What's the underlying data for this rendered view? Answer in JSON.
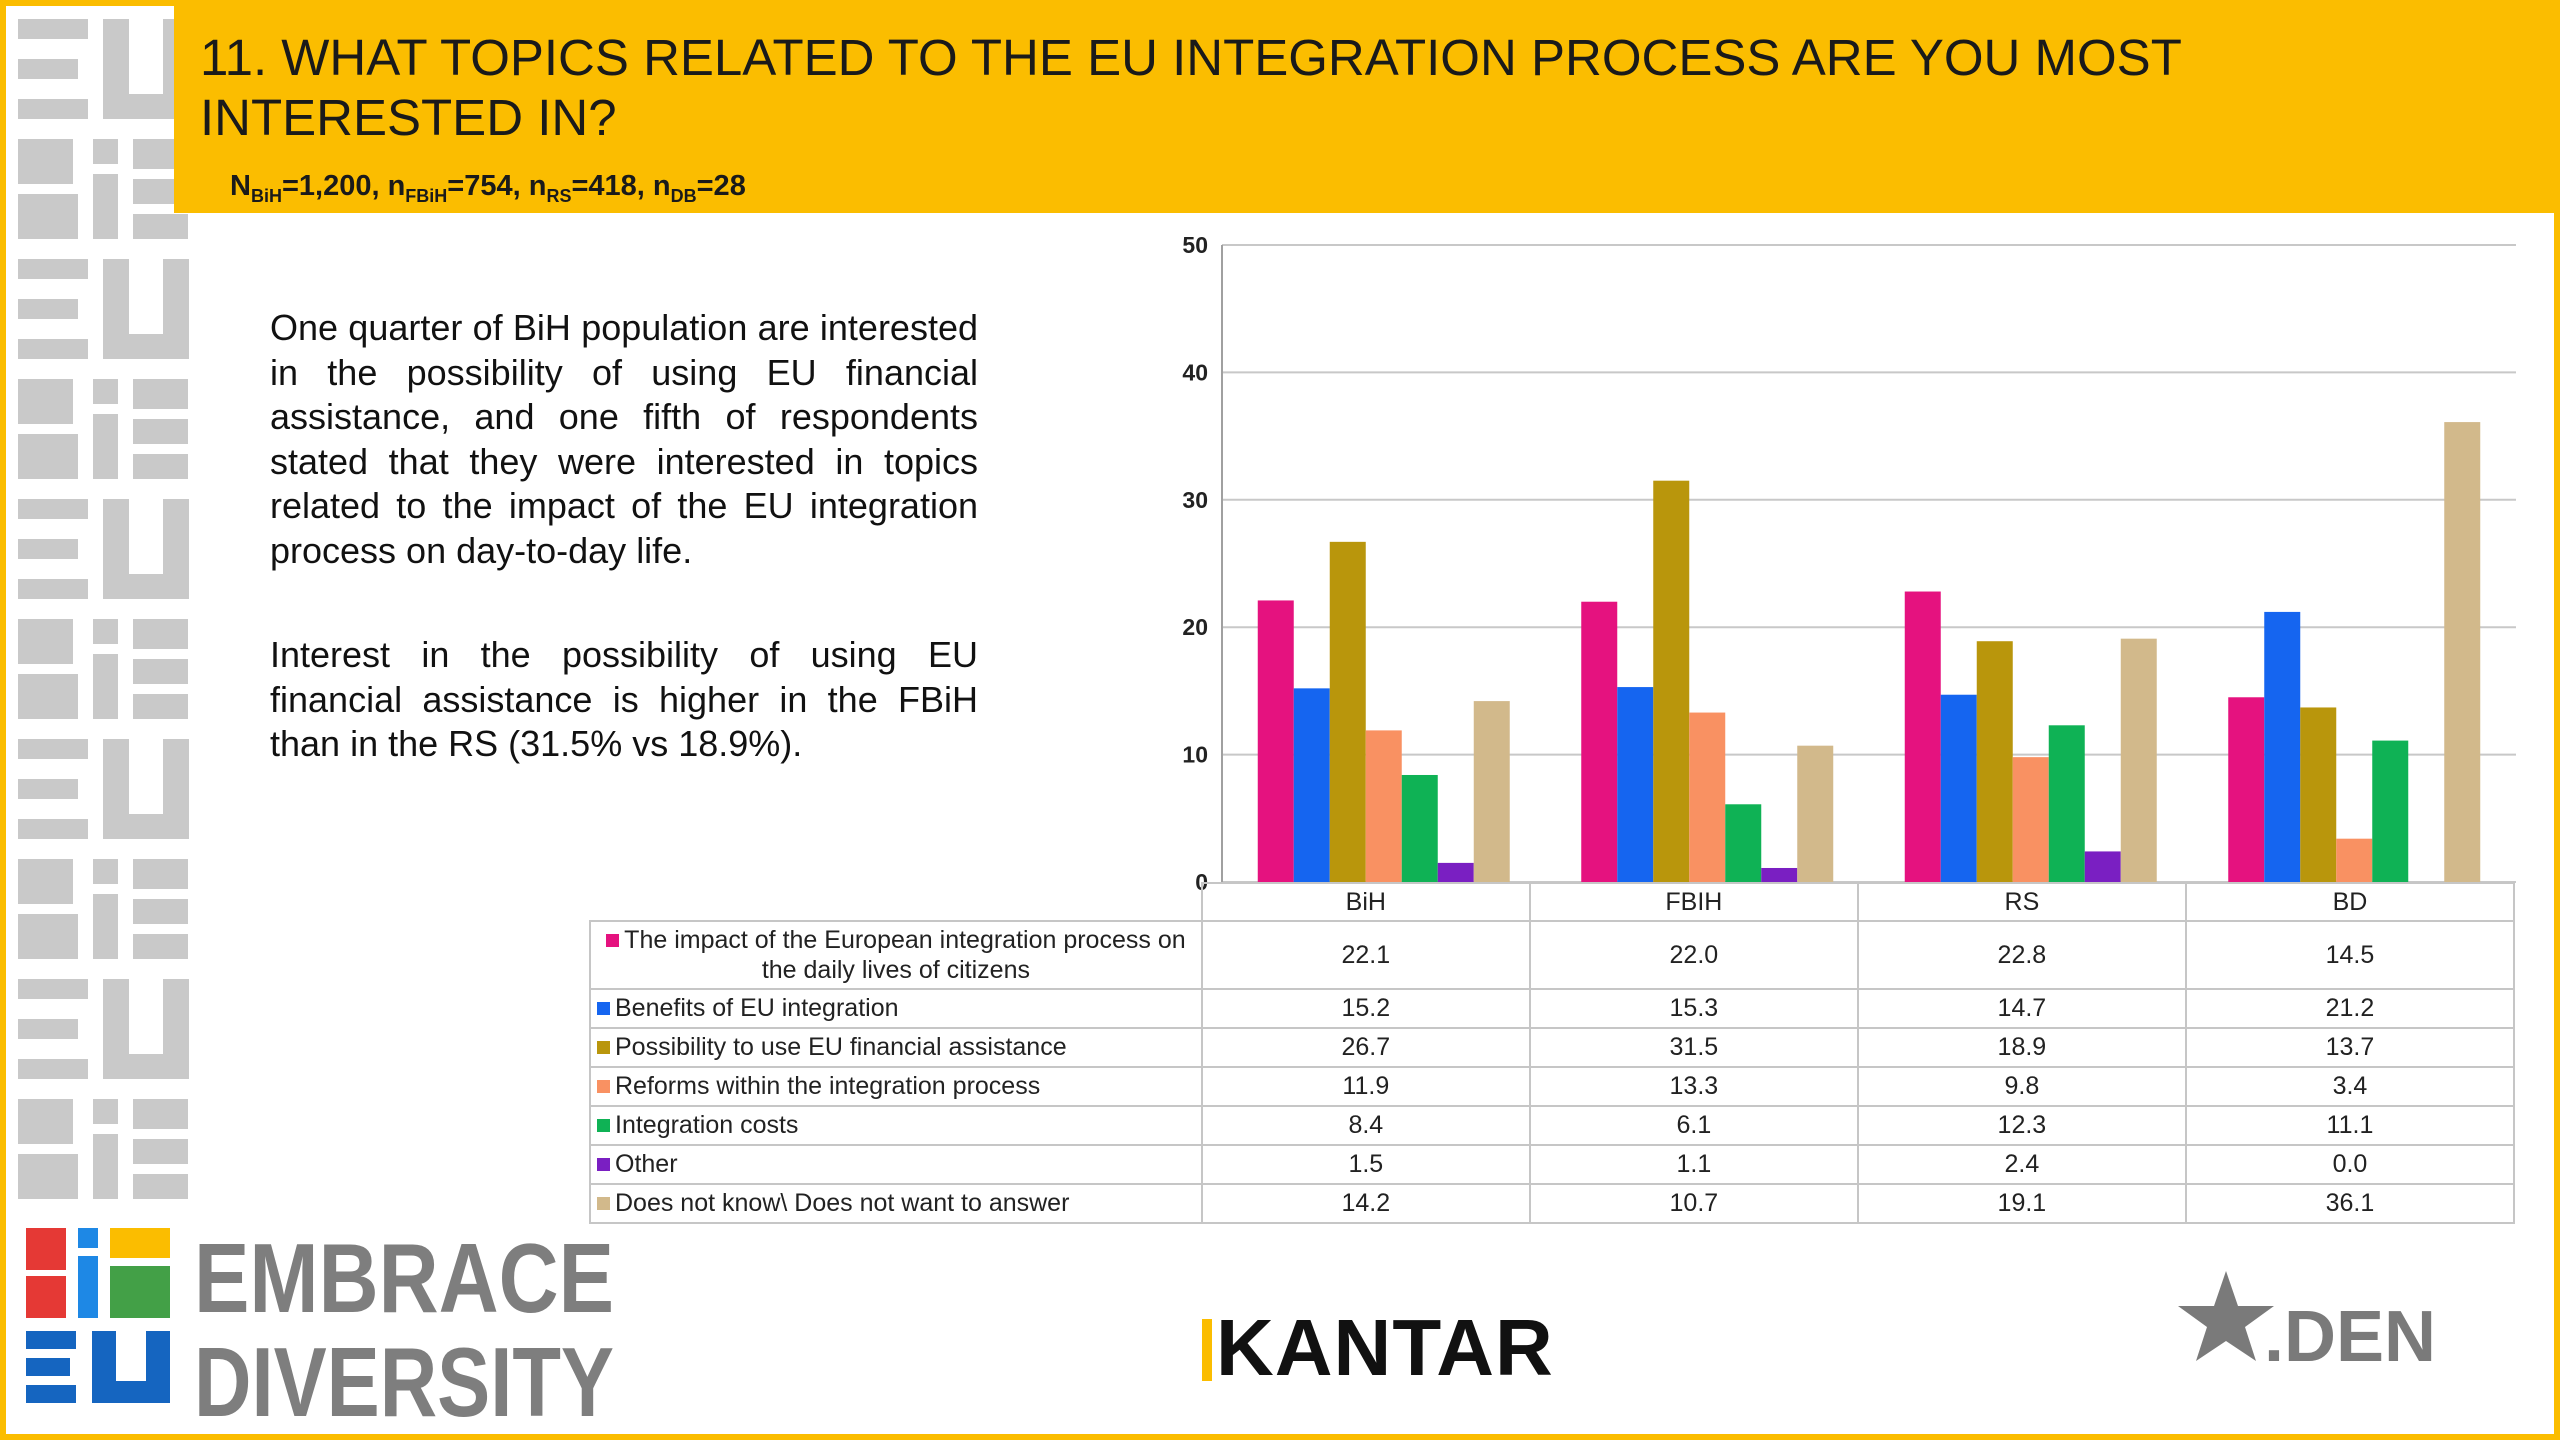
{
  "title": "11. WHAT TOPICS RELATED TO THE EU INTEGRATION PROCESS ARE YOU MOST INTERESTED IN?",
  "sample": [
    {
      "main": "N",
      "sub": "BiH",
      "val": "=1,200"
    },
    {
      "main": "n",
      "sub": "FBiH",
      "val": "=754"
    },
    {
      "main": "n",
      "sub": "RS",
      "val": "=418"
    },
    {
      "main": "n",
      "sub": "DB",
      "val": "=28"
    }
  ],
  "narrative": {
    "p1": "One quarter of BiH population are interested in the possibility of using EU financial assistance, and one fifth of respondents stated that they were interested in topics related to the impact of the EU integration process on day-to-day life.",
    "p2": "Interest in the possibility of using EU financial assistance is higher in the FBiH than in the RS  (31.5% vs 18.9%)."
  },
  "chart_data": {
    "type": "bar",
    "categories": [
      "BiH",
      "FBIH",
      "RS",
      "BD"
    ],
    "ylim": [
      0,
      50
    ],
    "yticks": [
      0,
      10,
      20,
      30,
      40,
      50
    ],
    "grid": true,
    "series": [
      {
        "name": "The impact of the European integration process on the daily lives of citizens",
        "color": "#e5127f",
        "values": [
          22.1,
          22.0,
          22.8,
          14.5
        ],
        "labels": [
          "22.1",
          "22.0",
          "22.8",
          "14.5"
        ]
      },
      {
        "name": "Benefits of EU integration",
        "color": "#1565f0",
        "values": [
          15.2,
          15.3,
          14.7,
          21.2
        ],
        "labels": [
          "15.2",
          "15.3",
          "14.7",
          "21.2"
        ]
      },
      {
        "name": "Possibility to use EU financial assistance",
        "color": "#b9960c",
        "values": [
          26.7,
          31.5,
          18.9,
          13.7
        ],
        "labels": [
          "26.7",
          "31.5",
          "18.9",
          "13.7"
        ]
      },
      {
        "name": "Reforms within the integration process",
        "color": "#f99162",
        "values": [
          11.9,
          13.3,
          9.8,
          3.4
        ],
        "labels": [
          "11.9",
          "13.3",
          "9.8",
          "3.4"
        ]
      },
      {
        "name": "Integration costs",
        "color": "#0fb255",
        "values": [
          8.4,
          6.1,
          12.3,
          11.1
        ],
        "labels": [
          "8.4",
          "6.1",
          "12.3",
          "11.1"
        ]
      },
      {
        "name": "Other",
        "color": "#7a1fc2",
        "values": [
          1.5,
          1.1,
          2.4,
          0.0
        ],
        "labels": [
          "1.5",
          "1.1",
          "2.4",
          "0.0"
        ]
      },
      {
        "name": "Does not know\\ Does not want to answer",
        "color": "#d2b98b",
        "values": [
          14.2,
          10.7,
          19.1,
          36.1
        ],
        "labels": [
          "14.2",
          "10.7",
          "19.1",
          "36.1"
        ]
      }
    ]
  },
  "logo": {
    "line1": "EMBRACE",
    "line2": "DIVERSITY",
    "colors": [
      "#e53935",
      "#1e88e5",
      "#fbbd00",
      "#43a047",
      "#7e7e7e",
      "#1565c0"
    ]
  },
  "kantar": "KANTAR",
  "den": ".DEN"
}
